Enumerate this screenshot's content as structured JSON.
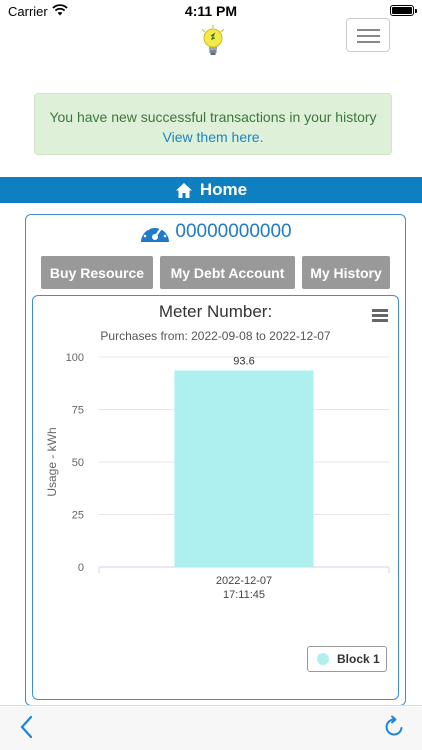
{
  "status_bar": {
    "carrier": "Carrier",
    "time": "4:11 PM"
  },
  "alert": {
    "message": "You have new successful transactions in your history",
    "link_text": "View them here."
  },
  "home_bar": {
    "label": "Home",
    "icon": "home-icon"
  },
  "meter": {
    "icon": "speedometer-icon",
    "number": "00000000000"
  },
  "buttons": {
    "buy_resource": "Buy Resource",
    "debt_account": "My Debt Account",
    "history": "My History"
  },
  "colors": {
    "accent_blue": "#0e7fc0",
    "alert_bg": "#dff0d8",
    "alert_text": "#3c763d",
    "button_gray": "#999999",
    "bar_color": "#aef0ef"
  },
  "chart_data": {
    "type": "bar",
    "title": "Meter Number:",
    "subtitle": "Purchases from: 2022-09-08 to 2022-12-07",
    "ylabel": "Usage - kWh",
    "xlabel": "",
    "ylim": [
      0,
      100
    ],
    "yticks": [
      0,
      25,
      50,
      75,
      100
    ],
    "grid": true,
    "legend_position": "bottom-right",
    "categories": [
      "2022-12-07 17:11:45"
    ],
    "category_lines": [
      [
        "2022-12-07",
        "17:11:45"
      ]
    ],
    "series": [
      {
        "name": "Block 1",
        "values": [
          93.6
        ]
      }
    ]
  },
  "bottom_bar": {
    "back_icon": "chevron-left-icon",
    "refresh_icon": "refresh-icon"
  }
}
